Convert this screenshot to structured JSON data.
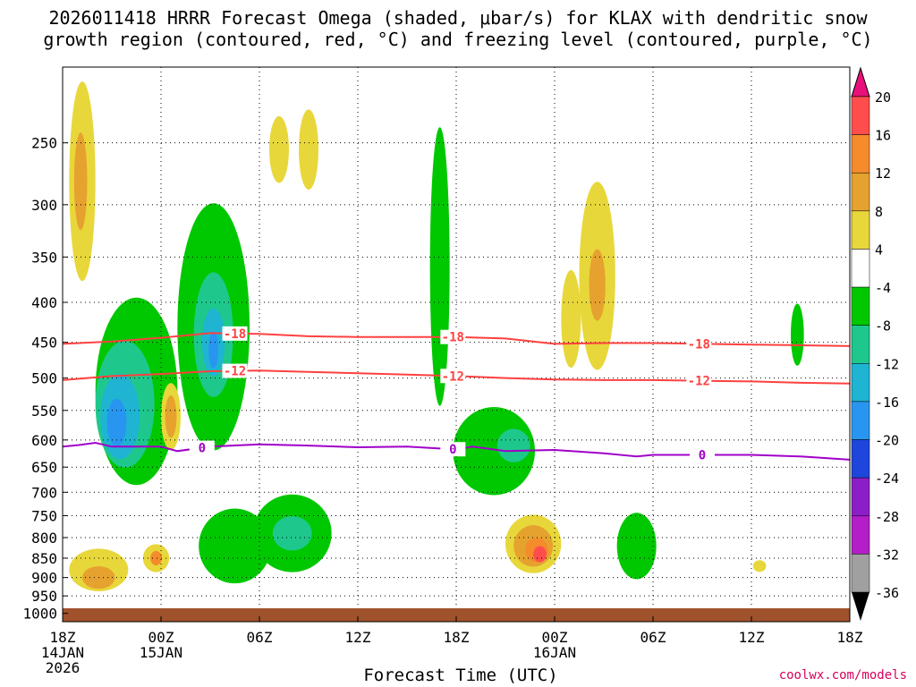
{
  "title_line1": "2026011418 HRRR Forecast Omega (shaded, μbar/s) for KLAX with dendritic snow",
  "title_line2": "growth region (contoured, red, °C) and freezing level (contoured, purple, °C)",
  "xaxis_label": "Forecast Time (UTC)",
  "credit": "coolwx.com/models",
  "chart_data": {
    "type": "time-height cross section",
    "xlabel": "Forecast Time (UTC)",
    "ylabel": "",
    "x_ticks": [
      {
        "hour": 0,
        "lines": [
          "18Z",
          "14JAN",
          "2026"
        ]
      },
      {
        "hour": 6,
        "lines": [
          "00Z",
          "15JAN"
        ]
      },
      {
        "hour": 12,
        "lines": [
          "06Z"
        ]
      },
      {
        "hour": 18,
        "lines": [
          "12Z"
        ]
      },
      {
        "hour": 24,
        "lines": [
          "18Z"
        ]
      },
      {
        "hour": 30,
        "lines": [
          "00Z",
          "16JAN"
        ]
      },
      {
        "hour": 36,
        "lines": [
          "06Z"
        ]
      },
      {
        "hour": 42,
        "lines": [
          "12Z"
        ]
      },
      {
        "hour": 48,
        "lines": [
          "18Z"
        ]
      }
    ],
    "xlim_hours": [
      0,
      48
    ],
    "y_ticks_hpa": [
      250,
      300,
      350,
      400,
      450,
      500,
      550,
      600,
      650,
      700,
      750,
      800,
      850,
      900,
      950,
      1000
    ],
    "ylim_hpa": [
      200,
      1025
    ],
    "y_scale": "log-pressure",
    "grid": true,
    "colorbar": {
      "labels": [
        "20",
        "16",
        "12",
        "8",
        "4",
        "-4",
        "-8",
        "-12",
        "-16",
        "-20",
        "-24",
        "-28",
        "-32",
        "-36"
      ],
      "colors": [
        "#ff4d4d",
        "#f58b2b",
        "#e6a22e",
        "#e8d73a",
        "#ffffff",
        "#00c800",
        "#1ec88c",
        "#1eb4d2",
        "#2896f0",
        "#1e46dc",
        "#8c1ec8",
        "#b41ec8",
        "#a0a0a0"
      ],
      "top_arrow_color": "#e8107a",
      "bottom_arrow_color": "#000000"
    },
    "contours": [
      {
        "name": "-18",
        "color": "#ff4040",
        "label": "-18",
        "points": [
          [
            0,
            452
          ],
          [
            3,
            449
          ],
          [
            6,
            444
          ],
          [
            9,
            438
          ],
          [
            12,
            439
          ],
          [
            15,
            442
          ],
          [
            18,
            443
          ],
          [
            21,
            443
          ],
          [
            24,
            443
          ],
          [
            27,
            445
          ],
          [
            30,
            452
          ],
          [
            33,
            451
          ],
          [
            36,
            451
          ],
          [
            39,
            452
          ],
          [
            42,
            453
          ],
          [
            45,
            454
          ],
          [
            48,
            455
          ]
        ]
      },
      {
        "name": "-12",
        "color": "#ff4040",
        "label": "-12",
        "points": [
          [
            0,
            503
          ],
          [
            3,
            497
          ],
          [
            6,
            494
          ],
          [
            9,
            490
          ],
          [
            12,
            489
          ],
          [
            15,
            491
          ],
          [
            18,
            493
          ],
          [
            21,
            495
          ],
          [
            24,
            497
          ],
          [
            27,
            500
          ],
          [
            30,
            502
          ],
          [
            33,
            503
          ],
          [
            36,
            503
          ],
          [
            39,
            504
          ],
          [
            42,
            505
          ],
          [
            45,
            507
          ],
          [
            48,
            508
          ]
        ]
      },
      {
        "name": "0",
        "color": "#a000c8",
        "label": "0",
        "points": [
          [
            0,
            612
          ],
          [
            1,
            609
          ],
          [
            2,
            605
          ],
          [
            3,
            612
          ],
          [
            6,
            612
          ],
          [
            7,
            620
          ],
          [
            9,
            612
          ],
          [
            12,
            608
          ],
          [
            15,
            610
          ],
          [
            18,
            613
          ],
          [
            21,
            612
          ],
          [
            24,
            617
          ],
          [
            25,
            612
          ],
          [
            27,
            620
          ],
          [
            30,
            618
          ],
          [
            33,
            624
          ],
          [
            35,
            630
          ],
          [
            36,
            627
          ],
          [
            39,
            627
          ],
          [
            42,
            627
          ],
          [
            45,
            630
          ],
          [
            48,
            636
          ]
        ]
      }
    ],
    "omega_regions": [
      {
        "value": -4,
        "cx": 4.5,
        "p": 520,
        "rx": 2.5,
        "rp": 140
      },
      {
        "value": -8,
        "cx": 3.8,
        "p": 540,
        "rx": 1.8,
        "rp": 100
      },
      {
        "value": -12,
        "cx": 3.5,
        "p": 560,
        "rx": 1.2,
        "rp": 70
      },
      {
        "value": -16,
        "cx": 3.3,
        "p": 570,
        "rx": 0.6,
        "rp": 40
      },
      {
        "value": -4,
        "cx": 9.2,
        "p": 430,
        "rx": 2.2,
        "rp": 150
      },
      {
        "value": -8,
        "cx": 9.2,
        "p": 440,
        "rx": 1.2,
        "rp": 80
      },
      {
        "value": -12,
        "cx": 9.2,
        "p": 450,
        "rx": 0.7,
        "rp": 45
      },
      {
        "value": -16,
        "cx": 9.2,
        "p": 460,
        "rx": 0.3,
        "rp": 25
      },
      {
        "value": -4,
        "cx": 14.0,
        "p": 790,
        "rx": 2.4,
        "rp": 90
      },
      {
        "value": -8,
        "cx": 14.0,
        "p": 790,
        "rx": 1.2,
        "rp": 40
      },
      {
        "value": -4,
        "cx": 10.5,
        "p": 820,
        "rx": 2.2,
        "rp": 90
      },
      {
        "value": -4,
        "cx": 23.0,
        "p": 360,
        "rx": 0.6,
        "rp": 140
      },
      {
        "value": -4,
        "cx": 26.3,
        "p": 620,
        "rx": 2.5,
        "rp": 80
      },
      {
        "value": -8,
        "cx": 27.5,
        "p": 610,
        "rx": 1.0,
        "rp": 30
      },
      {
        "value": -4,
        "cx": 35.0,
        "p": 820,
        "rx": 1.2,
        "rp": 80
      },
      {
        "value": -4,
        "cx": 44.8,
        "p": 440,
        "rx": 0.4,
        "rp": 40
      },
      {
        "value": 4,
        "cx": 1.2,
        "p": 280,
        "rx": 0.8,
        "rp": 80
      },
      {
        "value": 8,
        "cx": 1.1,
        "p": 280,
        "rx": 0.4,
        "rp": 40
      },
      {
        "value": 4,
        "cx": 6.6,
        "p": 560,
        "rx": 0.6,
        "rp": 55
      },
      {
        "value": 8,
        "cx": 6.6,
        "p": 560,
        "rx": 0.35,
        "rp": 35
      },
      {
        "value": 4,
        "cx": 2.2,
        "p": 880,
        "rx": 1.8,
        "rp": 55
      },
      {
        "value": 8,
        "cx": 2.2,
        "p": 900,
        "rx": 1.0,
        "rp": 30
      },
      {
        "value": 4,
        "cx": 5.7,
        "p": 850,
        "rx": 0.8,
        "rp": 35
      },
      {
        "value": 12,
        "cx": 5.7,
        "p": 850,
        "rx": 0.35,
        "rp": 18
      },
      {
        "value": 4,
        "cx": 28.7,
        "p": 815,
        "rx": 1.7,
        "rp": 70
      },
      {
        "value": 8,
        "cx": 28.7,
        "p": 820,
        "rx": 1.2,
        "rp": 50
      },
      {
        "value": 12,
        "cx": 28.9,
        "p": 830,
        "rx": 0.7,
        "rp": 30
      },
      {
        "value": 16,
        "cx": 29.1,
        "p": 840,
        "rx": 0.4,
        "rp": 20
      },
      {
        "value": 4,
        "cx": 32.6,
        "p": 370,
        "rx": 1.1,
        "rp": 100
      },
      {
        "value": 8,
        "cx": 32.6,
        "p": 380,
        "rx": 0.5,
        "rp": 40
      },
      {
        "value": 4,
        "cx": 15.0,
        "p": 255,
        "rx": 0.6,
        "rp": 30
      },
      {
        "value": 4,
        "cx": 13.2,
        "p": 255,
        "rx": 0.6,
        "rp": 25
      },
      {
        "value": 4,
        "cx": 31.0,
        "p": 420,
        "rx": 0.6,
        "rp": 60
      },
      {
        "value": 4,
        "cx": 42.5,
        "p": 870,
        "rx": 0.4,
        "rp": 15
      }
    ]
  }
}
